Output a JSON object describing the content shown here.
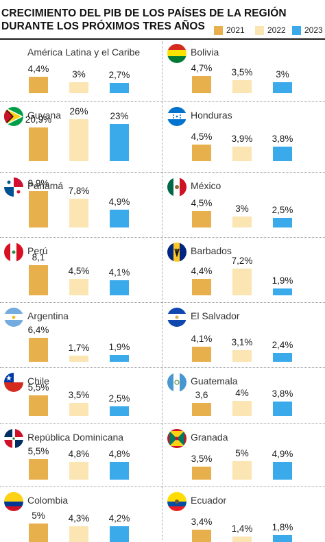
{
  "title_line1": "CRECIMIENTO DEL PIB DE LOS PAÍSES DE LA REGIÓN",
  "title_line2": "DURANTE LOS PRÓXIMOS TRES AÑOS",
  "legend": [
    {
      "label": "2021",
      "color": "#e8b04c"
    },
    {
      "label": "2022",
      "color": "#fbe5b2"
    },
    {
      "label": "2023",
      "color": "#3aaaea"
    }
  ],
  "chart_data": {
    "type": "bar",
    "series_names": [
      "2021",
      "2022",
      "2023"
    ],
    "panels": [
      {
        "name": "América Latina y el Caribe",
        "flag": "",
        "values": [
          4.4,
          3,
          2.7
        ],
        "labels": [
          "4,4%",
          "3%",
          "2,7%"
        ]
      },
      {
        "name": "Bolivia",
        "flag": "bolivia-flag",
        "values": [
          4.7,
          3.5,
          3
        ],
        "labels": [
          "4,7%",
          "3,5%",
          "3%"
        ]
      },
      {
        "name": "Guyana",
        "flag": "guyana-flag",
        "values": [
          20.9,
          26,
          23
        ],
        "labels": [
          "20,9%",
          "26%",
          "23%"
        ]
      },
      {
        "name": "Honduras",
        "flag": "honduras-flag",
        "values": [
          4.5,
          3.9,
          3.8
        ],
        "labels": [
          "4,5%",
          "3,9%",
          "3,8%"
        ]
      },
      {
        "name": "Panamá",
        "flag": "panama-flag",
        "values": [
          9.9,
          7.8,
          4.9
        ],
        "labels": [
          "9,9%",
          "7,8%",
          "4,9%"
        ]
      },
      {
        "name": "México",
        "flag": "mexico-flag",
        "values": [
          4.5,
          3,
          2.5
        ],
        "labels": [
          "4,5%",
          "3%",
          "2,5%"
        ]
      },
      {
        "name": "Perú",
        "flag": "peru-flag",
        "values": [
          8.1,
          4.5,
          4.1
        ],
        "labels": [
          "8,1",
          "4,5%",
          "4,1%"
        ]
      },
      {
        "name": "Barbados",
        "flag": "barbados-flag",
        "values": [
          4.4,
          7.2,
          1.9
        ],
        "labels": [
          "4,4%",
          "7,2%",
          "1,9%"
        ]
      },
      {
        "name": "Argentina",
        "flag": "argentina-flag",
        "values": [
          6.4,
          1.7,
          1.9
        ],
        "labels": [
          "6,4%",
          "1,7%",
          "1,9%"
        ]
      },
      {
        "name": "El Salvador",
        "flag": "el-salvador-flag",
        "values": [
          4.1,
          3.1,
          2.4
        ],
        "labels": [
          "4,1%",
          "3,1%",
          "2,4%"
        ]
      },
      {
        "name": "Chile",
        "flag": "chile-flag",
        "values": [
          5.5,
          3.5,
          2.5
        ],
        "labels": [
          "5,5%",
          "3,5%",
          "2,5%"
        ]
      },
      {
        "name": "Guatemala",
        "flag": "guatemala-flag",
        "values": [
          3.6,
          4,
          3.8
        ],
        "labels": [
          "3,6",
          "4%",
          "3,8%"
        ]
      },
      {
        "name": "República Dominicana",
        "flag": "dominican-republic-flag",
        "values": [
          5.5,
          4.8,
          4.8
        ],
        "labels": [
          "5,5%",
          "4,8%",
          "4,8%"
        ]
      },
      {
        "name": "Granada",
        "flag": "grenada-flag",
        "values": [
          3.5,
          5,
          4.9
        ],
        "labels": [
          "3,5%",
          "5%",
          "4,9%"
        ]
      },
      {
        "name": "Colombia",
        "flag": "colombia-flag",
        "values": [
          5,
          4.3,
          4.2
        ],
        "labels": [
          "5%",
          "4,3%",
          "4,2%"
        ]
      },
      {
        "name": "Ecuador",
        "flag": "ecuador-flag",
        "values": [
          3.4,
          1.4,
          1.8
        ],
        "labels": [
          "3,4%",
          "1,4%",
          "1,8%"
        ]
      }
    ]
  }
}
